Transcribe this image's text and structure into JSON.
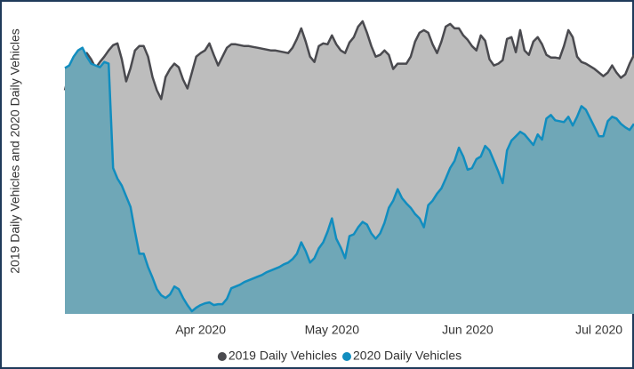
{
  "chart_data": {
    "type": "area",
    "ylabel": "2019 Daily Vehicles and 2020 Daily Vehicles",
    "categories": [
      null,
      null,
      null,
      null,
      null,
      null,
      null,
      null,
      null,
      null,
      null,
      null,
      null,
      null,
      null,
      null,
      null,
      null,
      null,
      null,
      null,
      null,
      null,
      null,
      null,
      null,
      null,
      null,
      null,
      null,
      null,
      "Apr 2020",
      null,
      null,
      null,
      null,
      null,
      null,
      null,
      null,
      null,
      null,
      null,
      null,
      null,
      null,
      null,
      null,
      null,
      null,
      null,
      null,
      null,
      null,
      null,
      null,
      null,
      null,
      null,
      null,
      null,
      "May 2020",
      null,
      null,
      null,
      null,
      null,
      null,
      null,
      null,
      null,
      null,
      null,
      null,
      null,
      null,
      null,
      null,
      null,
      null,
      null,
      null,
      null,
      null,
      null,
      null,
      null,
      null,
      null,
      null,
      null,
      null,
      "Jun 2020",
      null,
      null,
      null,
      null,
      null,
      null,
      null,
      null,
      null,
      null,
      null,
      null,
      null,
      null,
      null,
      null,
      null,
      null,
      null,
      null,
      null,
      null,
      null,
      null,
      null,
      null,
      null,
      null,
      null,
      "Jul 2020",
      null,
      null,
      null,
      null,
      null,
      null,
      null,
      null
    ],
    "series": [
      {
        "name": "2019 Daily Vehicles",
        "color": "#4a4a4f",
        "fill": "#bdbdbd",
        "values": [
          253,
          273,
          283,
          287,
          291,
          295,
          288,
          278,
          285,
          291,
          298,
          304,
          306,
          288,
          263,
          278,
          298,
          303,
          303,
          291,
          268,
          253,
          243,
          268,
          277,
          283,
          279,
          265,
          255,
          273,
          291,
          295,
          298,
          306,
          293,
          281,
          291,
          301,
          305,
          305,
          304,
          303,
          303,
          302,
          301,
          300,
          299,
          298,
          298,
          297,
          296,
          295,
          301,
          311,
          323,
          308,
          291,
          285,
          303,
          306,
          305,
          315,
          305,
          298,
          295,
          307,
          313,
          325,
          331,
          318,
          303,
          291,
          293,
          298,
          293,
          277,
          283,
          283,
          283,
          291,
          308,
          318,
          321,
          318,
          305,
          295,
          308,
          325,
          328,
          323,
          323,
          315,
          310,
          303,
          298,
          315,
          309,
          288,
          281,
          283,
          287,
          311,
          313,
          296,
          321,
          298,
          293,
          308,
          313,
          305,
          293,
          290,
          290,
          289,
          303,
          321,
          313,
          291,
          285,
          283,
          280,
          277,
          273,
          269,
          273,
          281,
          273,
          267,
          271,
          283,
          293
        ]
      },
      {
        "name": "2020 Daily Vehicles",
        "color": "#118dbf",
        "fill": "#6fa7b7",
        "values": [
          278,
          281,
          291,
          298,
          301,
          291,
          283,
          281,
          279,
          285,
          283,
          165,
          153,
          145,
          133,
          121,
          93,
          68,
          68,
          53,
          41,
          28,
          21,
          18,
          22,
          31,
          28,
          18,
          10,
          3,
          7,
          10,
          12,
          13,
          10,
          11,
          11,
          17,
          29,
          31,
          33,
          36,
          38,
          40,
          42,
          44,
          47,
          49,
          51,
          53,
          56,
          58,
          62,
          68,
          81,
          71,
          58,
          63,
          74,
          81,
          93,
          108,
          85,
          75,
          63,
          88,
          90,
          98,
          104,
          101,
          91,
          85,
          91,
          103,
          120,
          128,
          141,
          131,
          125,
          120,
          113,
          108,
          98,
          123,
          128,
          136,
          142,
          153,
          165,
          173,
          188,
          178,
          163,
          165,
          175,
          178,
          190,
          185,
          173,
          161,
          148,
          185,
          196,
          201,
          206,
          203,
          197,
          191,
          203,
          197,
          221,
          225,
          219,
          218,
          217,
          223,
          213,
          223,
          235,
          231,
          221,
          211,
          201,
          201,
          218,
          223,
          221,
          215,
          211,
          208,
          215
        ]
      }
    ],
    "ylim": [
      0,
      345
    ],
    "legend": "bottom"
  }
}
